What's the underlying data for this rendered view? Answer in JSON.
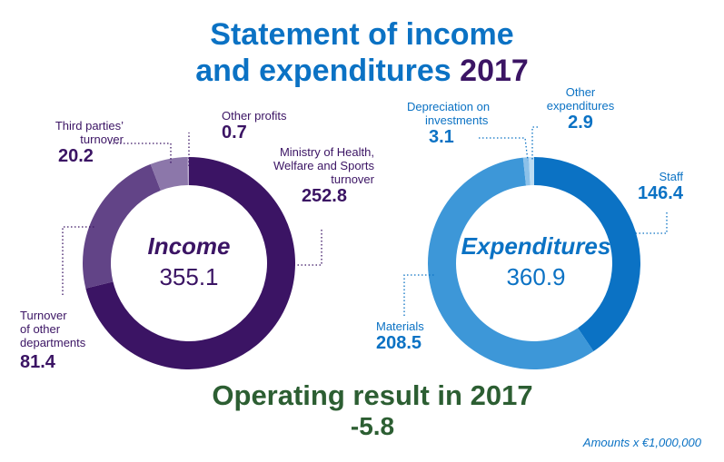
{
  "title": {
    "line1": "Statement of income",
    "line2": "and expenditures",
    "year": "2017"
  },
  "colors": {
    "title_blue": "#0b72c4",
    "income_text": "#3b1464",
    "expenditure_text": "#0b72c4",
    "result_green": "#2c5e32"
  },
  "chart_data": [
    {
      "type": "pie",
      "donut": true,
      "center_label": "Income",
      "center_value": "355.1",
      "slices": [
        {
          "label": "Ministry of Health, Welfare and Sports turnover",
          "value": 252.8,
          "value_text": "252.8",
          "color": "#3b1464"
        },
        {
          "label": "Turnover of other departments",
          "value": 81.4,
          "value_text": "81.4",
          "color": "#624487"
        },
        {
          "label": "Third parties' turnover",
          "value": 20.2,
          "value_text": "20.2",
          "color": "#8c77aa"
        },
        {
          "label": "Other profits",
          "value": 0.7,
          "value_text": "0.7",
          "color": "#b8a9cc"
        }
      ]
    },
    {
      "type": "pie",
      "donut": true,
      "center_label": "Expenditures",
      "center_value": "360.9",
      "slices": [
        {
          "label": "Staff",
          "value": 146.4,
          "value_text": "146.4",
          "color": "#0b72c4"
        },
        {
          "label": "Materials",
          "value": 208.5,
          "value_text": "208.5",
          "color": "#3d97d8"
        },
        {
          "label": "Depreciation on investments",
          "value": 3.1,
          "value_text": "3.1",
          "color": "#8cc1e9"
        },
        {
          "label": "Other expenditures",
          "value": 2.9,
          "value_text": "2.9",
          "color": "#bcdcf3"
        }
      ]
    }
  ],
  "labels": {
    "income": {
      "other_profits": {
        "name": "Other profits",
        "value": "0.7"
      },
      "third_parties": {
        "name1": "Third parties’",
        "name2": "turnover",
        "value": "20.2"
      },
      "ministry": {
        "name1": "Ministry of Health,",
        "name2": "Welfare and Sports",
        "name3": "turnover",
        "value": "252.8"
      },
      "other_departments": {
        "name1": "Turnover",
        "name2": "of other",
        "name3": "departments",
        "value": "81.4"
      }
    },
    "expenditures": {
      "depreciation": {
        "name1": "Depreciation on",
        "name2": "investments",
        "value": "3.1"
      },
      "other": {
        "name1": "Other",
        "name2": "expenditures",
        "value": "2.9"
      },
      "staff": {
        "name": "Staff",
        "value": "146.4"
      },
      "materials": {
        "name": "Materials",
        "value": "208.5"
      }
    }
  },
  "operating_result": {
    "label": "Operating result in",
    "year": "2017",
    "value": "-5.8"
  },
  "footnote": "Amounts x €1,000,000"
}
